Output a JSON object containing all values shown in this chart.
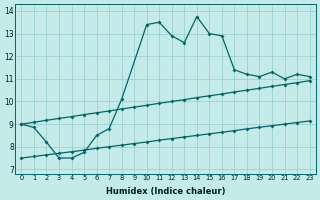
{
  "xlabel": "Humidex (Indice chaleur)",
  "bg_color": "#c5eaea",
  "grid_color": "#96cccc",
  "line_color": "#006666",
  "xlim": [
    -0.5,
    23.5
  ],
  "ylim": [
    6.8,
    14.3
  ],
  "yticks": [
    7,
    8,
    9,
    10,
    11,
    12,
    13,
    14
  ],
  "xticks": [
    0,
    1,
    2,
    3,
    4,
    5,
    6,
    7,
    8,
    9,
    10,
    11,
    12,
    13,
    14,
    15,
    16,
    17,
    18,
    19,
    20,
    21,
    22,
    23
  ],
  "curve_x": [
    0,
    1,
    2,
    3,
    4,
    5,
    6,
    7,
    8,
    10,
    11,
    12,
    13,
    14,
    15,
    16,
    17,
    18,
    19,
    20,
    21,
    22,
    23
  ],
  "curve_y": [
    9.0,
    8.85,
    8.2,
    7.5,
    7.5,
    7.75,
    8.5,
    8.8,
    10.1,
    13.4,
    13.5,
    12.9,
    12.6,
    13.75,
    13.0,
    12.9,
    11.4,
    11.2,
    11.1,
    11.3,
    11.0,
    11.2,
    11.1
  ],
  "low_x": [
    0,
    1,
    2,
    3,
    4,
    5,
    6,
    7,
    8,
    9,
    10,
    11,
    12,
    13,
    14,
    15,
    16,
    17,
    18,
    19,
    20,
    21,
    22,
    23
  ],
  "low_y": [
    7.5,
    7.57,
    7.64,
    7.71,
    7.78,
    7.85,
    7.93,
    8.0,
    8.07,
    8.14,
    8.21,
    8.29,
    8.36,
    8.43,
    8.5,
    8.57,
    8.64,
    8.71,
    8.79,
    8.86,
    8.93,
    9.0,
    9.07,
    9.14
  ],
  "high_x": [
    0,
    1,
    2,
    3,
    4,
    5,
    6,
    7,
    8,
    9,
    10,
    11,
    12,
    13,
    14,
    15,
    16,
    17,
    18,
    19,
    20,
    21,
    22,
    23
  ],
  "high_y": [
    9.0,
    9.08,
    9.17,
    9.25,
    9.33,
    9.42,
    9.5,
    9.58,
    9.67,
    9.75,
    9.83,
    9.92,
    10.0,
    10.08,
    10.17,
    10.25,
    10.33,
    10.42,
    10.5,
    10.58,
    10.67,
    10.75,
    10.83,
    10.92
  ]
}
